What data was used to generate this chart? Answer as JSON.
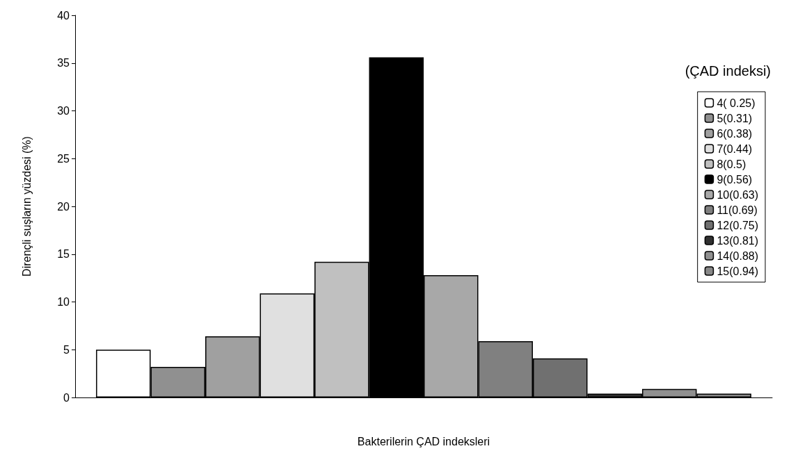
{
  "chart_data": {
    "type": "bar",
    "xlabel": "Bakterilerin ÇAD indeksleri",
    "ylabel": "Dirençli suşların yüzdesi (%)",
    "legend_title": "(ÇAD indeksi)",
    "categories": [
      null
    ],
    "series": [
      {
        "name": "4( 0.25)",
        "color": "#ffffff",
        "values": [
          5.0
        ]
      },
      {
        "name": "5(0.31)",
        "color": "#909090",
        "values": [
          3.2
        ]
      },
      {
        "name": "6(0.38)",
        "color": "#a0a0a0",
        "values": [
          6.4
        ]
      },
      {
        "name": "7(0.44)",
        "color": "#e0e0e0",
        "values": [
          10.9
        ]
      },
      {
        "name": "8(0.5)",
        "color": "#c0c0c0",
        "values": [
          14.2
        ]
      },
      {
        "name": "9(0.56)",
        "color": "#000000",
        "values": [
          35.6
        ]
      },
      {
        "name": "10(0.63)",
        "color": "#a8a8a8",
        "values": [
          12.8
        ]
      },
      {
        "name": "11(0.69)",
        "color": "#808080",
        "values": [
          5.9
        ]
      },
      {
        "name": "12(0.75)",
        "color": "#707070",
        "values": [
          4.1
        ]
      },
      {
        "name": "13(0.81)",
        "color": "#303030",
        "values": [
          0.4
        ]
      },
      {
        "name": "14(0.88)",
        "color": "#909090",
        "values": [
          0.9
        ]
      },
      {
        "name": "15(0.94)",
        "color": "#888888",
        "values": [
          0.4
        ]
      }
    ],
    "ylim": [
      0,
      40
    ],
    "yticks": [
      0,
      5,
      10,
      15,
      20,
      25,
      30,
      35,
      40
    ],
    "grid": false,
    "legend": "right"
  }
}
